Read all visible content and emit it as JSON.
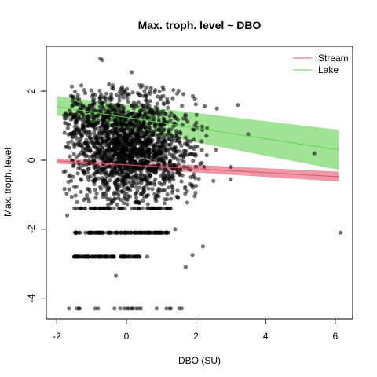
{
  "chart_data": {
    "type": "scatter",
    "title": "Max. troph. level ~ DBO",
    "xlabel": "DBO (SU)",
    "ylabel": "Max. troph. level",
    "xlim": [
      -2.3,
      6.5
    ],
    "ylim": [
      -4.6,
      3.3
    ],
    "x_ticks": [
      -2,
      0,
      2,
      4,
      6
    ],
    "y_ticks": [
      -4,
      -2,
      0,
      2
    ],
    "x_tick_labels": [
      "-2",
      "0",
      "2",
      "4",
      "6"
    ],
    "y_tick_labels": [
      "-4",
      "-2",
      "0",
      "2"
    ],
    "legend_position": "top-right",
    "point_color": "#000000",
    "point_opacity": 0.55,
    "grid": false,
    "series": [
      {
        "name": "Stream",
        "color": "#DF536B",
        "fit_x": [
          -2,
          6.1
        ],
        "fit_y": [
          -0.02,
          -0.48
        ],
        "band_upper": [
          0.05,
          -0.33
        ],
        "band_lower": [
          -0.1,
          -0.62
        ]
      },
      {
        "name": "Lake",
        "color": "#61D04F",
        "fit_x": [
          -2,
          6.1
        ],
        "fit_y": [
          1.55,
          0.3
        ],
        "band_upper": [
          1.85,
          0.88
        ],
        "band_lower": [
          1.3,
          -0.28
        ]
      }
    ],
    "scatter_clusters": [
      {
        "cx": -0.1,
        "cy": 0.4,
        "sx": 0.7,
        "sy": 0.8,
        "n": 1500
      },
      {
        "cx": -1.25,
        "cy": 1.2,
        "sx": 0.35,
        "sy": 0.4,
        "n": 120
      },
      {
        "cx": 1.3,
        "cy": 0.1,
        "sx": 0.6,
        "sy": 0.7,
        "n": 260
      }
    ],
    "scatter_bands": [
      {
        "y": -1.4,
        "x_from": -1.5,
        "x_to": 1.3,
        "n": 75
      },
      {
        "y": -2.1,
        "x_from": -1.6,
        "x_to": 1.2,
        "n": 110
      },
      {
        "y": -2.8,
        "x_from": -1.5,
        "x_to": 0.4,
        "n": 90
      },
      {
        "y": -4.3,
        "x_from": -1.7,
        "x_to": 1.6,
        "n": 22
      }
    ],
    "scatter_outliers": [
      [
        -0.75,
        2.95
      ],
      [
        -0.7,
        2.9
      ],
      [
        0.15,
        2.55
      ],
      [
        2.6,
        1.5
      ],
      [
        3.2,
        1.6
      ],
      [
        3.5,
        0.75
      ],
      [
        5.4,
        0.2
      ],
      [
        6.15,
        -2.1
      ],
      [
        3.0,
        -0.55
      ],
      [
        1.7,
        -3.1
      ],
      [
        2.2,
        -2.5
      ],
      [
        1.9,
        -2.75
      ],
      [
        0.6,
        -2.8
      ],
      [
        1.0,
        -2.1
      ],
      [
        -1.7,
        -1.6
      ],
      [
        -0.3,
        -3.35
      ],
      [
        1.4,
        -2.0
      ],
      [
        2.5,
        -0.6
      ]
    ]
  }
}
